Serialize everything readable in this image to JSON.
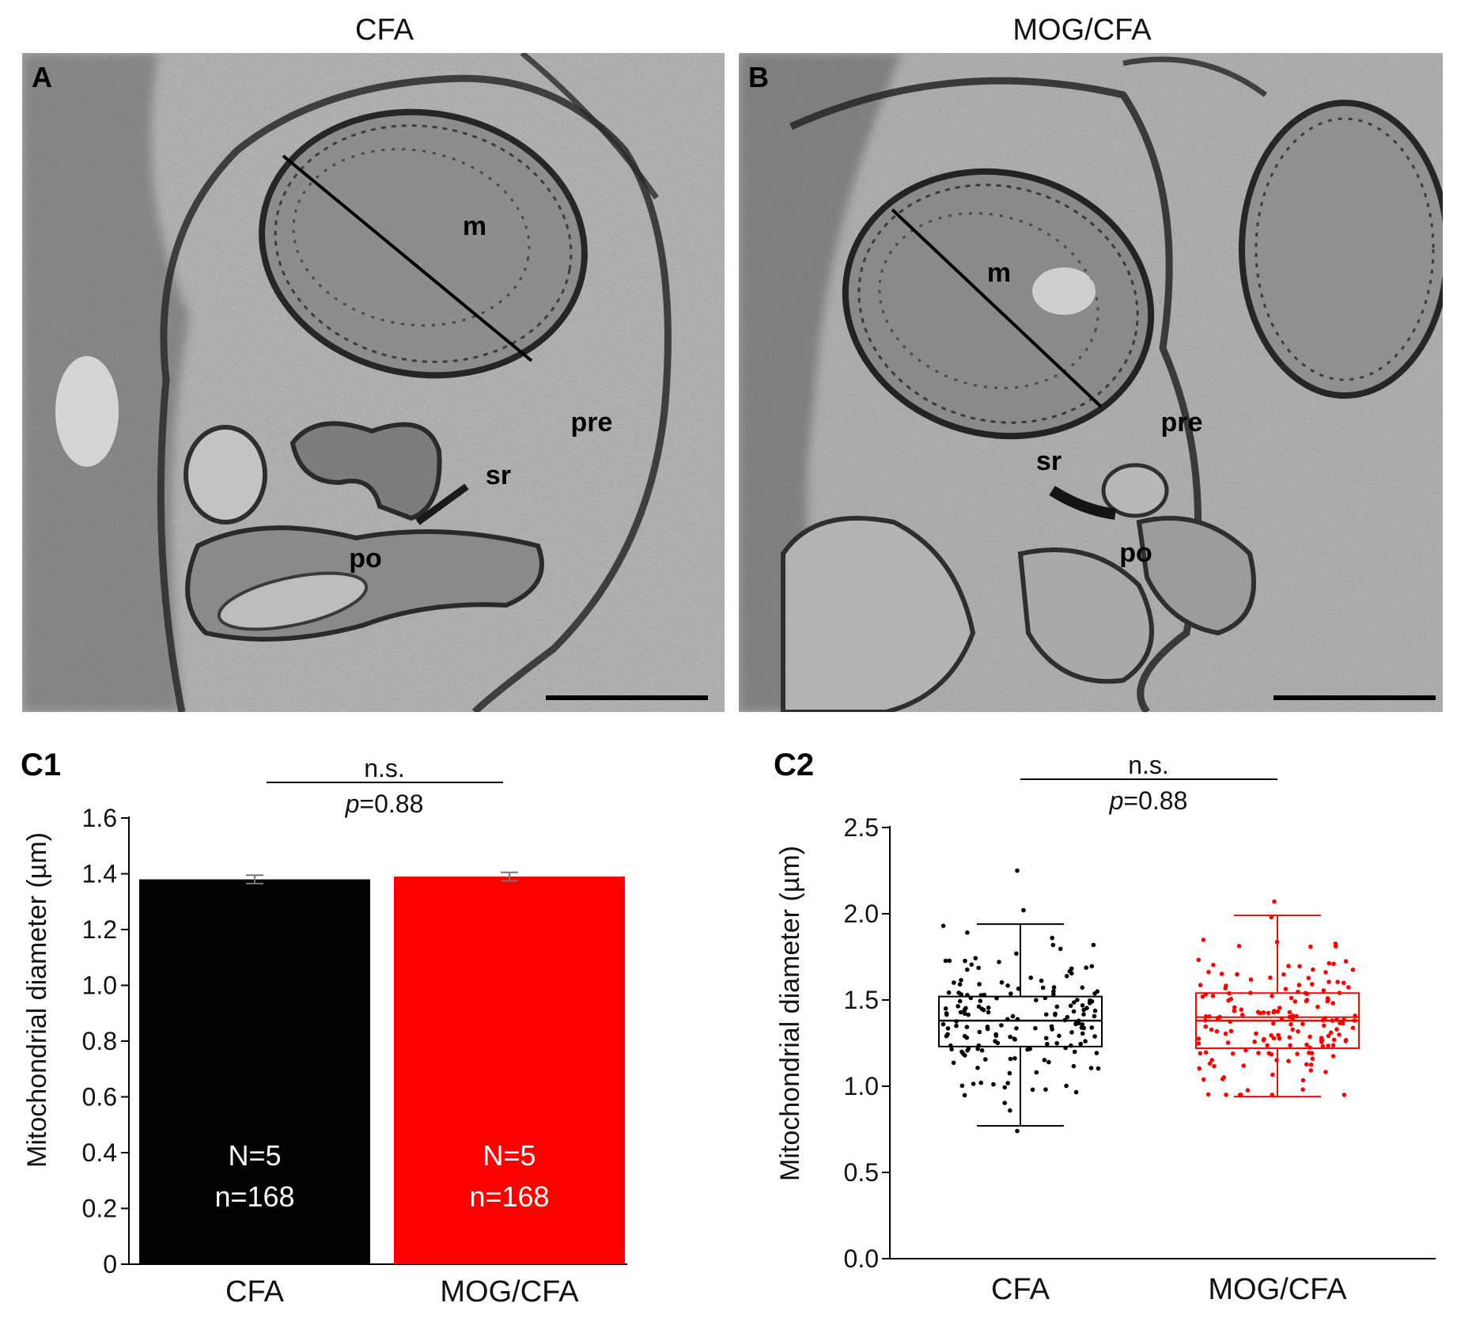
{
  "micrographs": {
    "left": {
      "title": "CFA",
      "panel": "A",
      "labels": {
        "m": "m",
        "pre": "pre",
        "sr": "sr",
        "po": "po"
      }
    },
    "right": {
      "title": "MOG/CFA",
      "panel": "B",
      "labels": {
        "m": "m",
        "pre": "pre",
        "sr": "sr",
        "po": "po"
      }
    }
  },
  "colors": {
    "cfa": "#000000",
    "mog": "#ff0000"
  },
  "chart_data": [
    {
      "panel": "C1",
      "type": "bar",
      "ylabel": "Mitochondrial diameter (µm)",
      "ylim": [
        0,
        1.6
      ],
      "yticks": [
        "0",
        "0.2",
        "0.4",
        "0.6",
        "0.8",
        "1.0",
        "1.2",
        "1.4",
        "1.6"
      ],
      "categories": [
        "CFA",
        "MOG/CFA"
      ],
      "values": [
        1.38,
        1.39
      ],
      "errors": [
        0.015,
        0.015
      ],
      "bar_text": [
        {
          "N": "N=5",
          "n": "n=168"
        },
        {
          "N": "N=5",
          "n": "n=168"
        }
      ],
      "significance": {
        "label": "n.s.",
        "p_prefix": "p",
        "p_value": "=0.88"
      }
    },
    {
      "panel": "C2",
      "type": "scatter",
      "ylabel": "Mitochondrial diameter (µm)",
      "ylim": [
        0,
        2.5
      ],
      "yticks": [
        "0.0",
        "0.5",
        "1.0",
        "1.5",
        "2.0",
        "2.5"
      ],
      "categories": [
        "CFA",
        "MOG/CFA"
      ],
      "boxes": [
        {
          "whisker_low": 0.77,
          "q1": 1.23,
          "median": 1.38,
          "q3": 1.52,
          "whisker_high": 1.94,
          "extra_points": [
            2.25,
            2.02,
            0.74
          ]
        },
        {
          "whisker_low": 0.94,
          "q1": 1.22,
          "median": 1.38,
          "q3": 1.54,
          "whisker_high": 1.99,
          "mean": 1.4,
          "extra_points": [
            2.07
          ]
        }
      ],
      "n_points": [
        168,
        168
      ],
      "significance": {
        "label": "n.s.",
        "p_prefix": "p",
        "p_value": "=0.88"
      }
    }
  ]
}
